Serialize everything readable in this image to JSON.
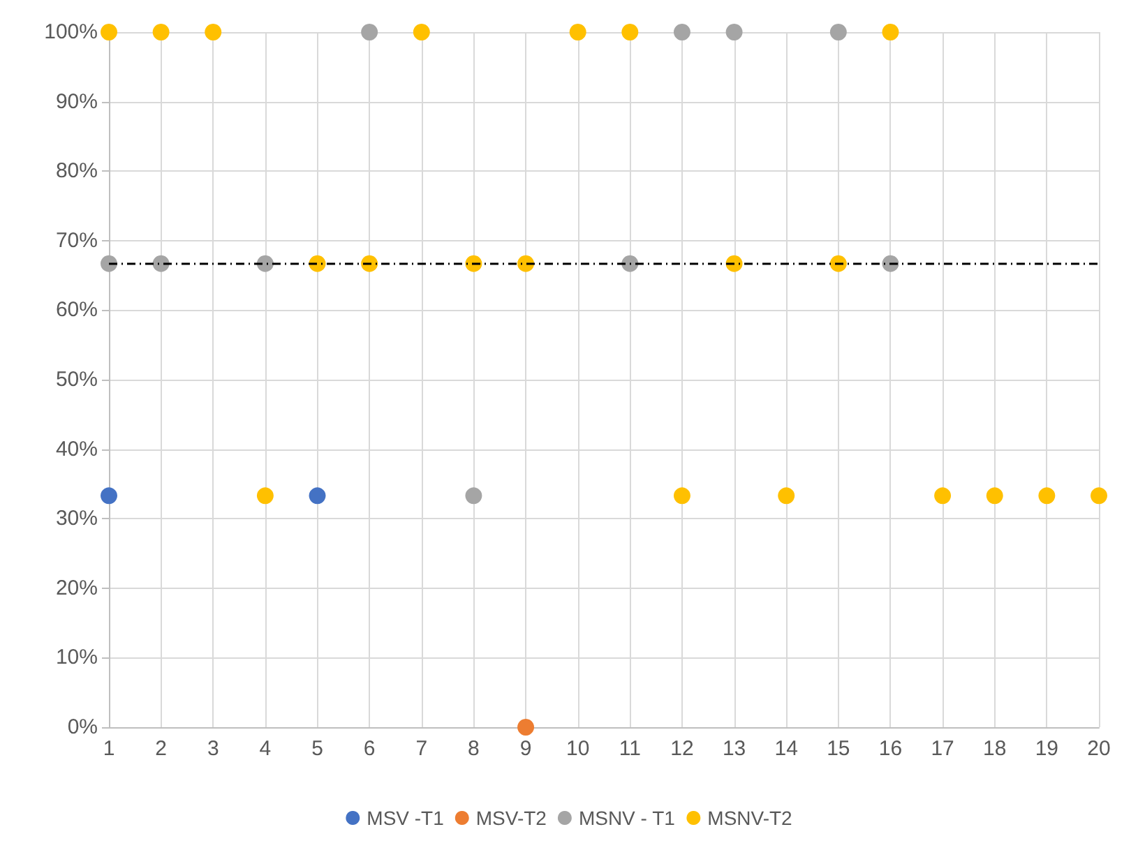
{
  "chart_data": {
    "type": "scatter",
    "xlim": [
      1,
      20
    ],
    "xticks": [
      1,
      2,
      3,
      4,
      5,
      6,
      7,
      8,
      9,
      10,
      11,
      12,
      13,
      14,
      15,
      16,
      17,
      18,
      19,
      20
    ],
    "ylim": [
      0,
      100
    ],
    "yticks": [
      {
        "value": 0,
        "label": "0%"
      },
      {
        "value": 10,
        "label": "10%"
      },
      {
        "value": 20,
        "label": "20%"
      },
      {
        "value": 30,
        "label": "30%"
      },
      {
        "value": 40,
        "label": "40%"
      },
      {
        "value": 50,
        "label": "50%"
      },
      {
        "value": 60,
        "label": "60%"
      },
      {
        "value": 70,
        "label": "70%"
      },
      {
        "value": 80,
        "label": "80%"
      },
      {
        "value": 90,
        "label": "90%"
      },
      {
        "value": 100,
        "label": "100%"
      }
    ],
    "grid": true,
    "legend": "bottom",
    "marker": "circle",
    "ref_lines": [
      {
        "axis": "y",
        "value": 66.7,
        "color": "#000000",
        "line_style": "dashed"
      }
    ],
    "series": [
      {
        "name": "MSV -T1",
        "color": "#4472c4",
        "x": [
          1,
          5
        ],
        "values": [
          33.3,
          33.3
        ]
      },
      {
        "name": "MSV-T2",
        "color": "#ed7d31",
        "x": [
          9
        ],
        "values": [
          0
        ]
      },
      {
        "name": "MSNV - T1",
        "color": "#a5a5a5",
        "x": [
          1,
          2,
          4,
          6,
          8,
          11,
          12,
          13,
          15,
          16
        ],
        "values": [
          66.7,
          66.7,
          66.7,
          100,
          33.3,
          66.7,
          100,
          100,
          100,
          66.7
        ]
      },
      {
        "name": "MSNV-T2",
        "color": "#ffc000",
        "x": [
          1,
          2,
          3,
          4,
          5,
          6,
          7,
          8,
          9,
          10,
          11,
          12,
          13,
          14,
          15,
          16,
          17,
          18,
          19,
          20
        ],
        "values": [
          100,
          100,
          100,
          33.3,
          66.7,
          66.7,
          100,
          66.7,
          66.7,
          100,
          100,
          33.3,
          66.7,
          33.3,
          66.7,
          100,
          33.3,
          33.3,
          33.3,
          33.3
        ]
      }
    ]
  }
}
